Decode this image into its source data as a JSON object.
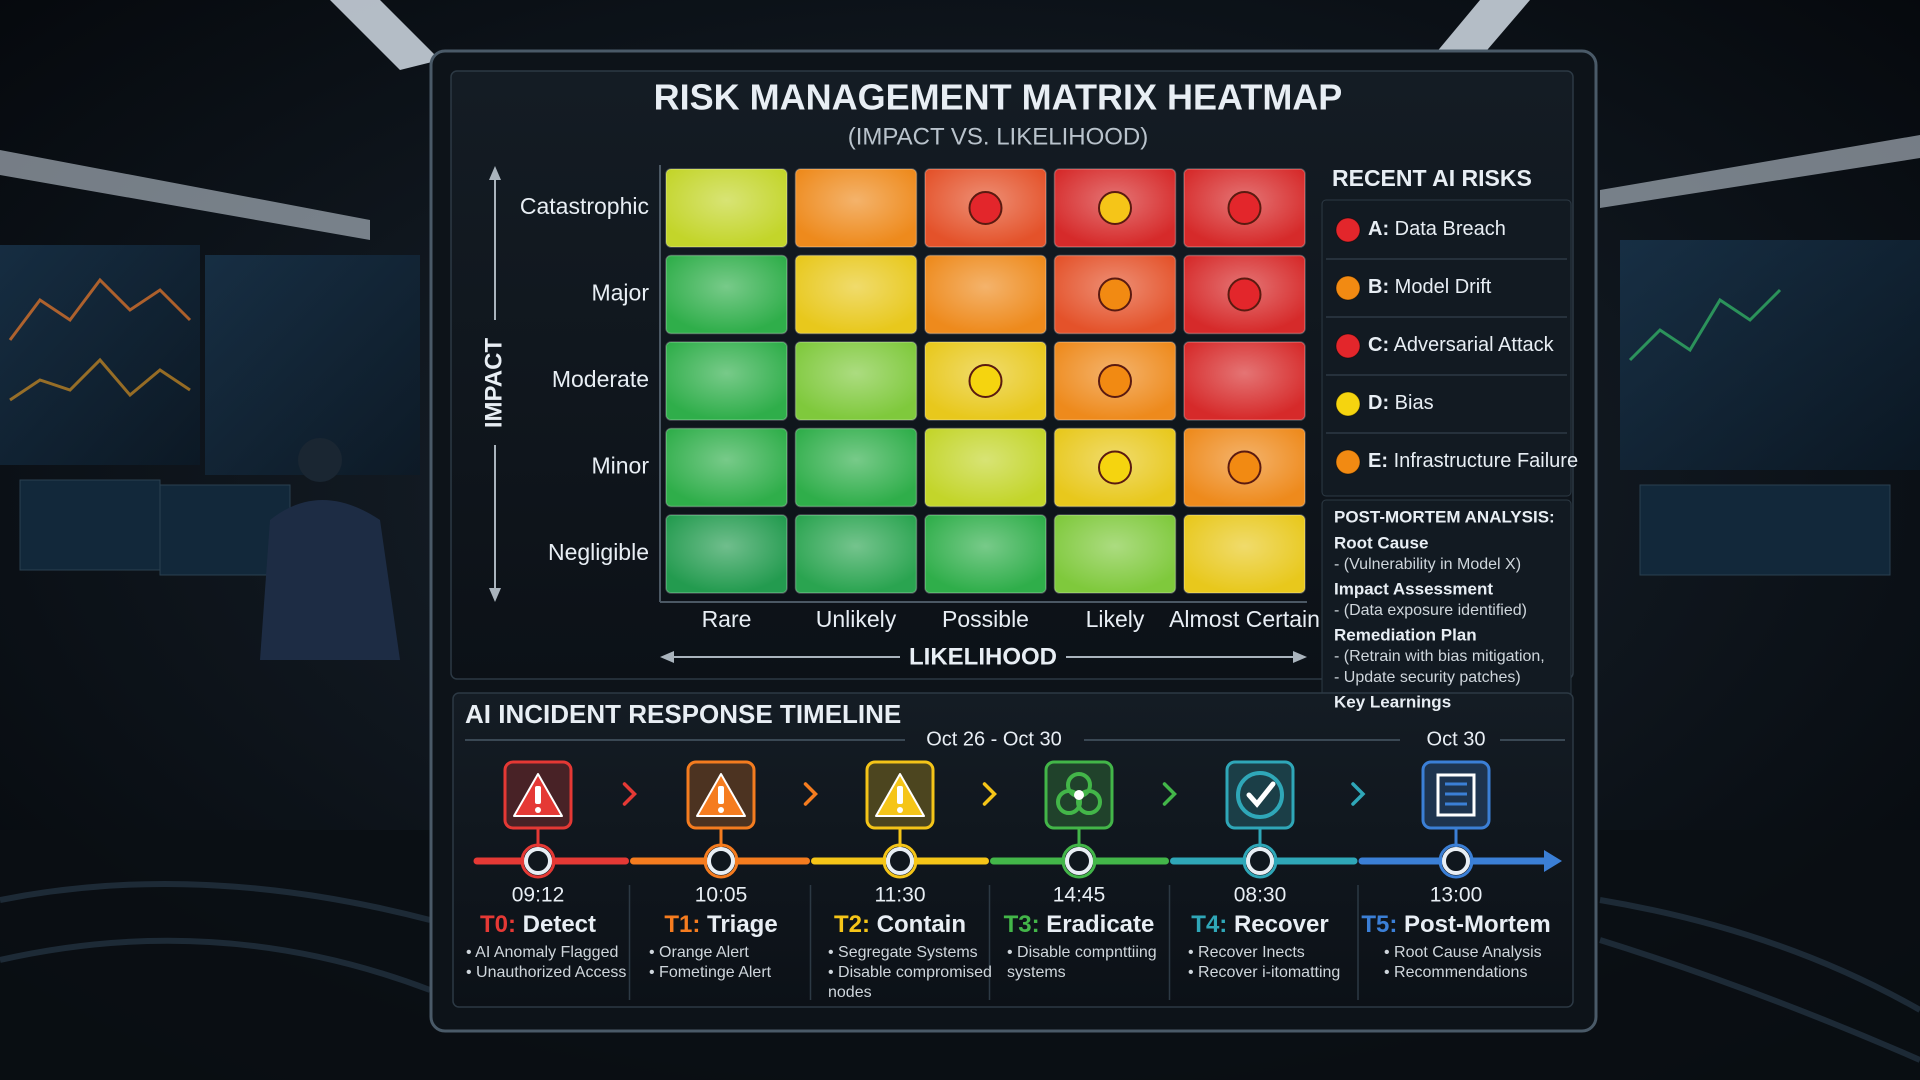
{
  "title": "RISK MANAGEMENT MATRIX HEATMAP",
  "subtitle": "(IMPACT VS. LIKELIHOOD)",
  "matrix": {
    "y_axis": "IMPACT",
    "x_axis": "LIKELIHOOD",
    "impact_levels": [
      "Catastrophic",
      "Major",
      "Moderate",
      "Minor",
      "Negligible"
    ],
    "likelihood_levels": [
      "Rare",
      "Unlikely",
      "Possible",
      "Likely",
      "Almost Certain"
    ]
  },
  "recent_risks": {
    "title": "RECENT AI RISKS",
    "items": [
      {
        "key": "A:",
        "label": "Data Breach",
        "color": "#e3262b"
      },
      {
        "key": "B:",
        "label": "Model Drift",
        "color": "#f28a12"
      },
      {
        "key": "C:",
        "label": "Adversarial Attack",
        "color": "#e3262b"
      },
      {
        "key": "D:",
        "label": "Bias",
        "color": "#f5d40f"
      },
      {
        "key": "E:",
        "label": "Infrastructure Failure",
        "color": "#f28a12"
      }
    ]
  },
  "post_mortem": {
    "title": "POST-MORTEM ANALYSIS:",
    "sections": [
      {
        "heading": "Root Cause",
        "lines": [
          "- (Vulnerability in Model X)"
        ]
      },
      {
        "heading": "Impact Assessment",
        "lines": [
          "- (Data exposure identified)"
        ]
      },
      {
        "heading": "Remediation Plan",
        "lines": [
          "- (Retrain with bias mitigation,",
          "- Update security patches)"
        ]
      },
      {
        "heading": "Key Learnings",
        "lines": []
      }
    ]
  },
  "timeline": {
    "title": "AI INCIDENT RESPONSE TIMELINE",
    "ranges": [
      "Oct 26 - Oct 30",
      "Oct 30"
    ],
    "stages": [
      {
        "code": "T0:",
        "name": "Detect",
        "time": "09:12",
        "color": "#e53935",
        "notes": [
          "• AI Anomaly Flagged",
          "• Unauthorized Access"
        ]
      },
      {
        "code": "T1:",
        "name": "Triage",
        "time": "10:05",
        "color": "#f57c1f",
        "notes": [
          "• Orange Alert",
          "• Fometinge Alert"
        ]
      },
      {
        "code": "T2:",
        "name": "Contain",
        "time": "11:30",
        "color": "#f5c518",
        "notes": [
          "• Segregate Systems",
          "• Disable compromised",
          "nodes"
        ]
      },
      {
        "code": "T3:",
        "name": "Eradicate",
        "time": "14:45",
        "color": "#43b649",
        "notes": [
          "• Disable compnttiing",
          "systems"
        ]
      },
      {
        "code": "T4:",
        "name": "Recover",
        "time": "08:30",
        "color": "#2fa7b8",
        "notes": [
          "• Recover Inects",
          "• Recover i-itomatting"
        ]
      },
      {
        "code": "T5:",
        "name": "Post-Mortem",
        "time": "13:00",
        "color": "#3b7fd6",
        "notes": [
          "• Root Cause Analysis",
          "• Recommendations"
        ]
      }
    ]
  }
}
